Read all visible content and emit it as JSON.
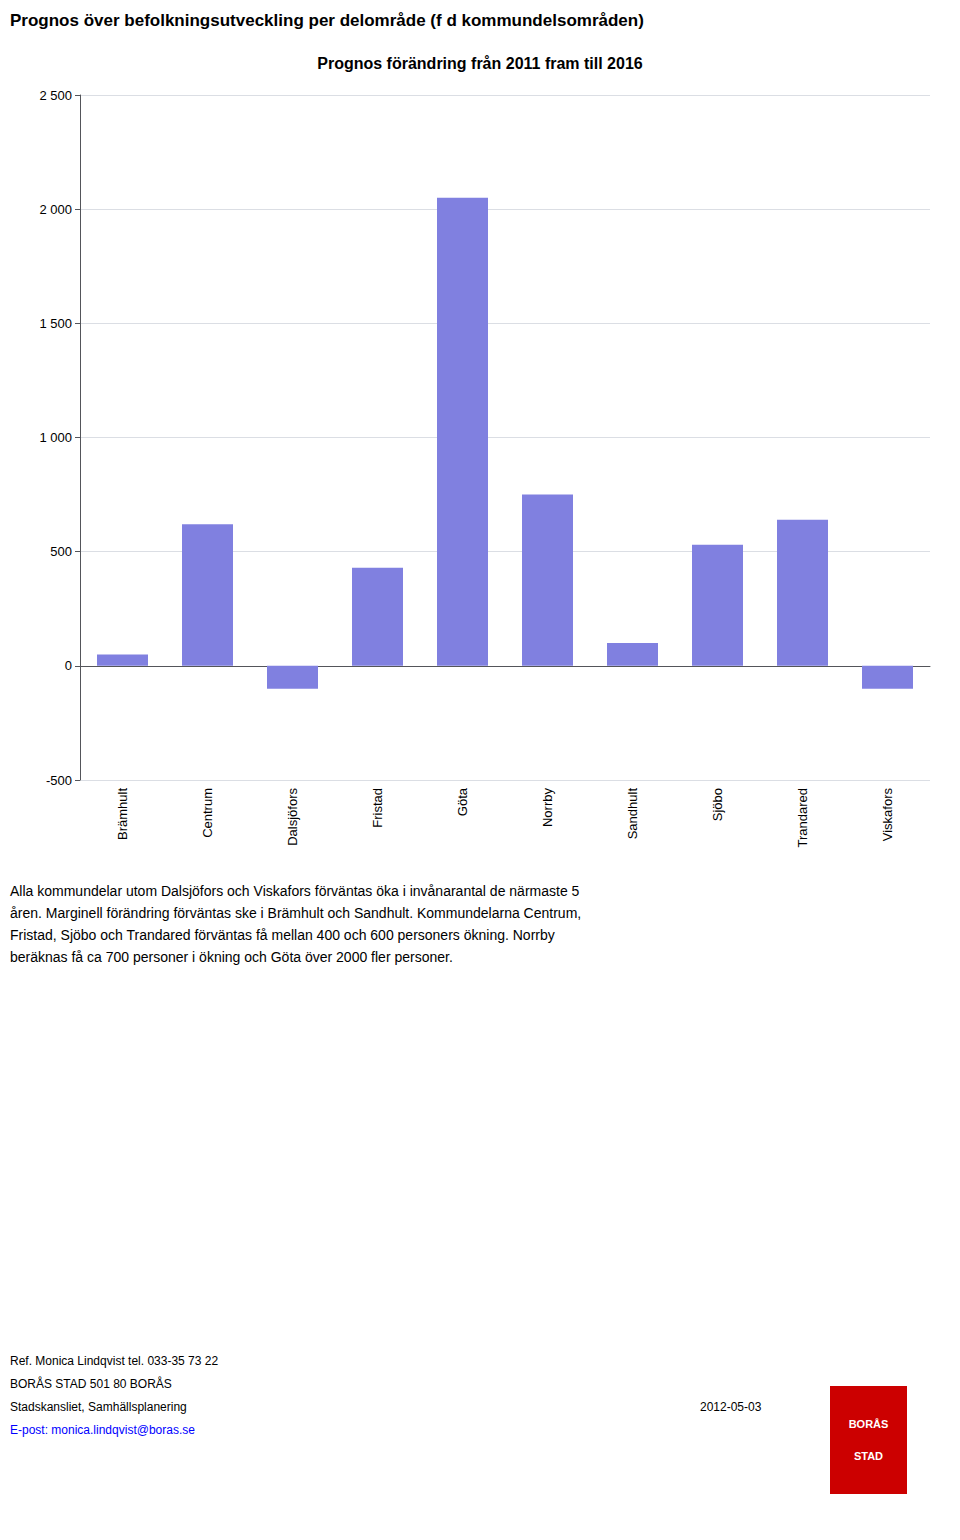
{
  "chart_data": {
    "type": "bar",
    "title": "Prognos förändring från 2011 fram till 2016",
    "categories": [
      "Brämhult",
      "Centrum",
      "Dalsjöfors",
      "Fristad",
      "Göta",
      "Norrby",
      "Sandhult",
      "Sjöbo",
      "Trandared",
      "Viskafors"
    ],
    "values": [
      50,
      620,
      -100,
      430,
      2050,
      750,
      100,
      530,
      640,
      -100
    ],
    "color": "#8080e0",
    "ylim": [
      -500,
      2500
    ],
    "yticks": [
      -500,
      0,
      500,
      {
        "value": 1000,
        "label": "1 000"
      },
      {
        "value": 1500,
        "label": "1 500"
      },
      {
        "value": 2000,
        "label": "2 000"
      },
      {
        "value": 2500,
        "label": "2 500"
      }
    ],
    "grid": true,
    "annotations": [
      "Prognos över befolkningsutveckling per delområde (f d kommundelsområden)",
      "Alla kommundelar utom Dalsjöfors och Viskafors förväntas öka i invånarantal de närmaste 5\nåren. Marginell förändring förväntas ske i Brämhult och Sandhult. Kommundelarna Centrum,\nFristad, Sjöbo och Trandared förväntas få mellan 400 och 600 personers ökning. Norrby\nberäknas få ca 700 personer i ökning och Göta över 2000 fler personer.",
      "Ref. Monica Lindqvist tel. 033-35 73 22",
      "BORÅS STAD 501 80 BORÅS",
      "Stadskansliet, Samhällsplanering",
      "E-post: monica.lindqvist@boras.se",
      "2012-05-03",
      "BORÅS",
      "STAD"
    ]
  }
}
